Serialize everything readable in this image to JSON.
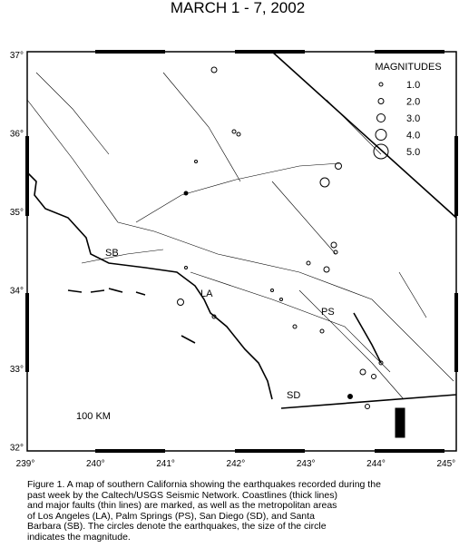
{
  "title": "MARCH 1 - 7, 2002",
  "x_axis_labels": [
    "239°",
    "240°",
    "241°",
    "242°",
    "243°",
    "244°",
    "245°"
  ],
  "y_axis_labels": [
    "37°",
    "36°",
    "35°",
    "34°",
    "33°",
    "32°"
  ],
  "legend": {
    "title": "MAGNITUDES",
    "entries": [
      "1.0",
      "2.0",
      "3.0",
      "4.0",
      "5.0"
    ]
  },
  "places": [
    "SB",
    "LA",
    "PS",
    "SD"
  ],
  "scale": "100 KM",
  "caption": [
    "Figure 1. A map of southern California showing the earthquakes recorded during the",
    "past week by the Caltech/USGS Seismic Network.  Coastlines (thick lines)",
    "and major faults (thin lines) are marked, as well as the metropolitan areas",
    "of Los Angeles (LA), Palm Springs (PS), San Diego (SD), and Santa",
    "Barbara (SB).  The circles denote the earthquakes, the size of the circle",
    "indicates the magnitude."
  ]
}
